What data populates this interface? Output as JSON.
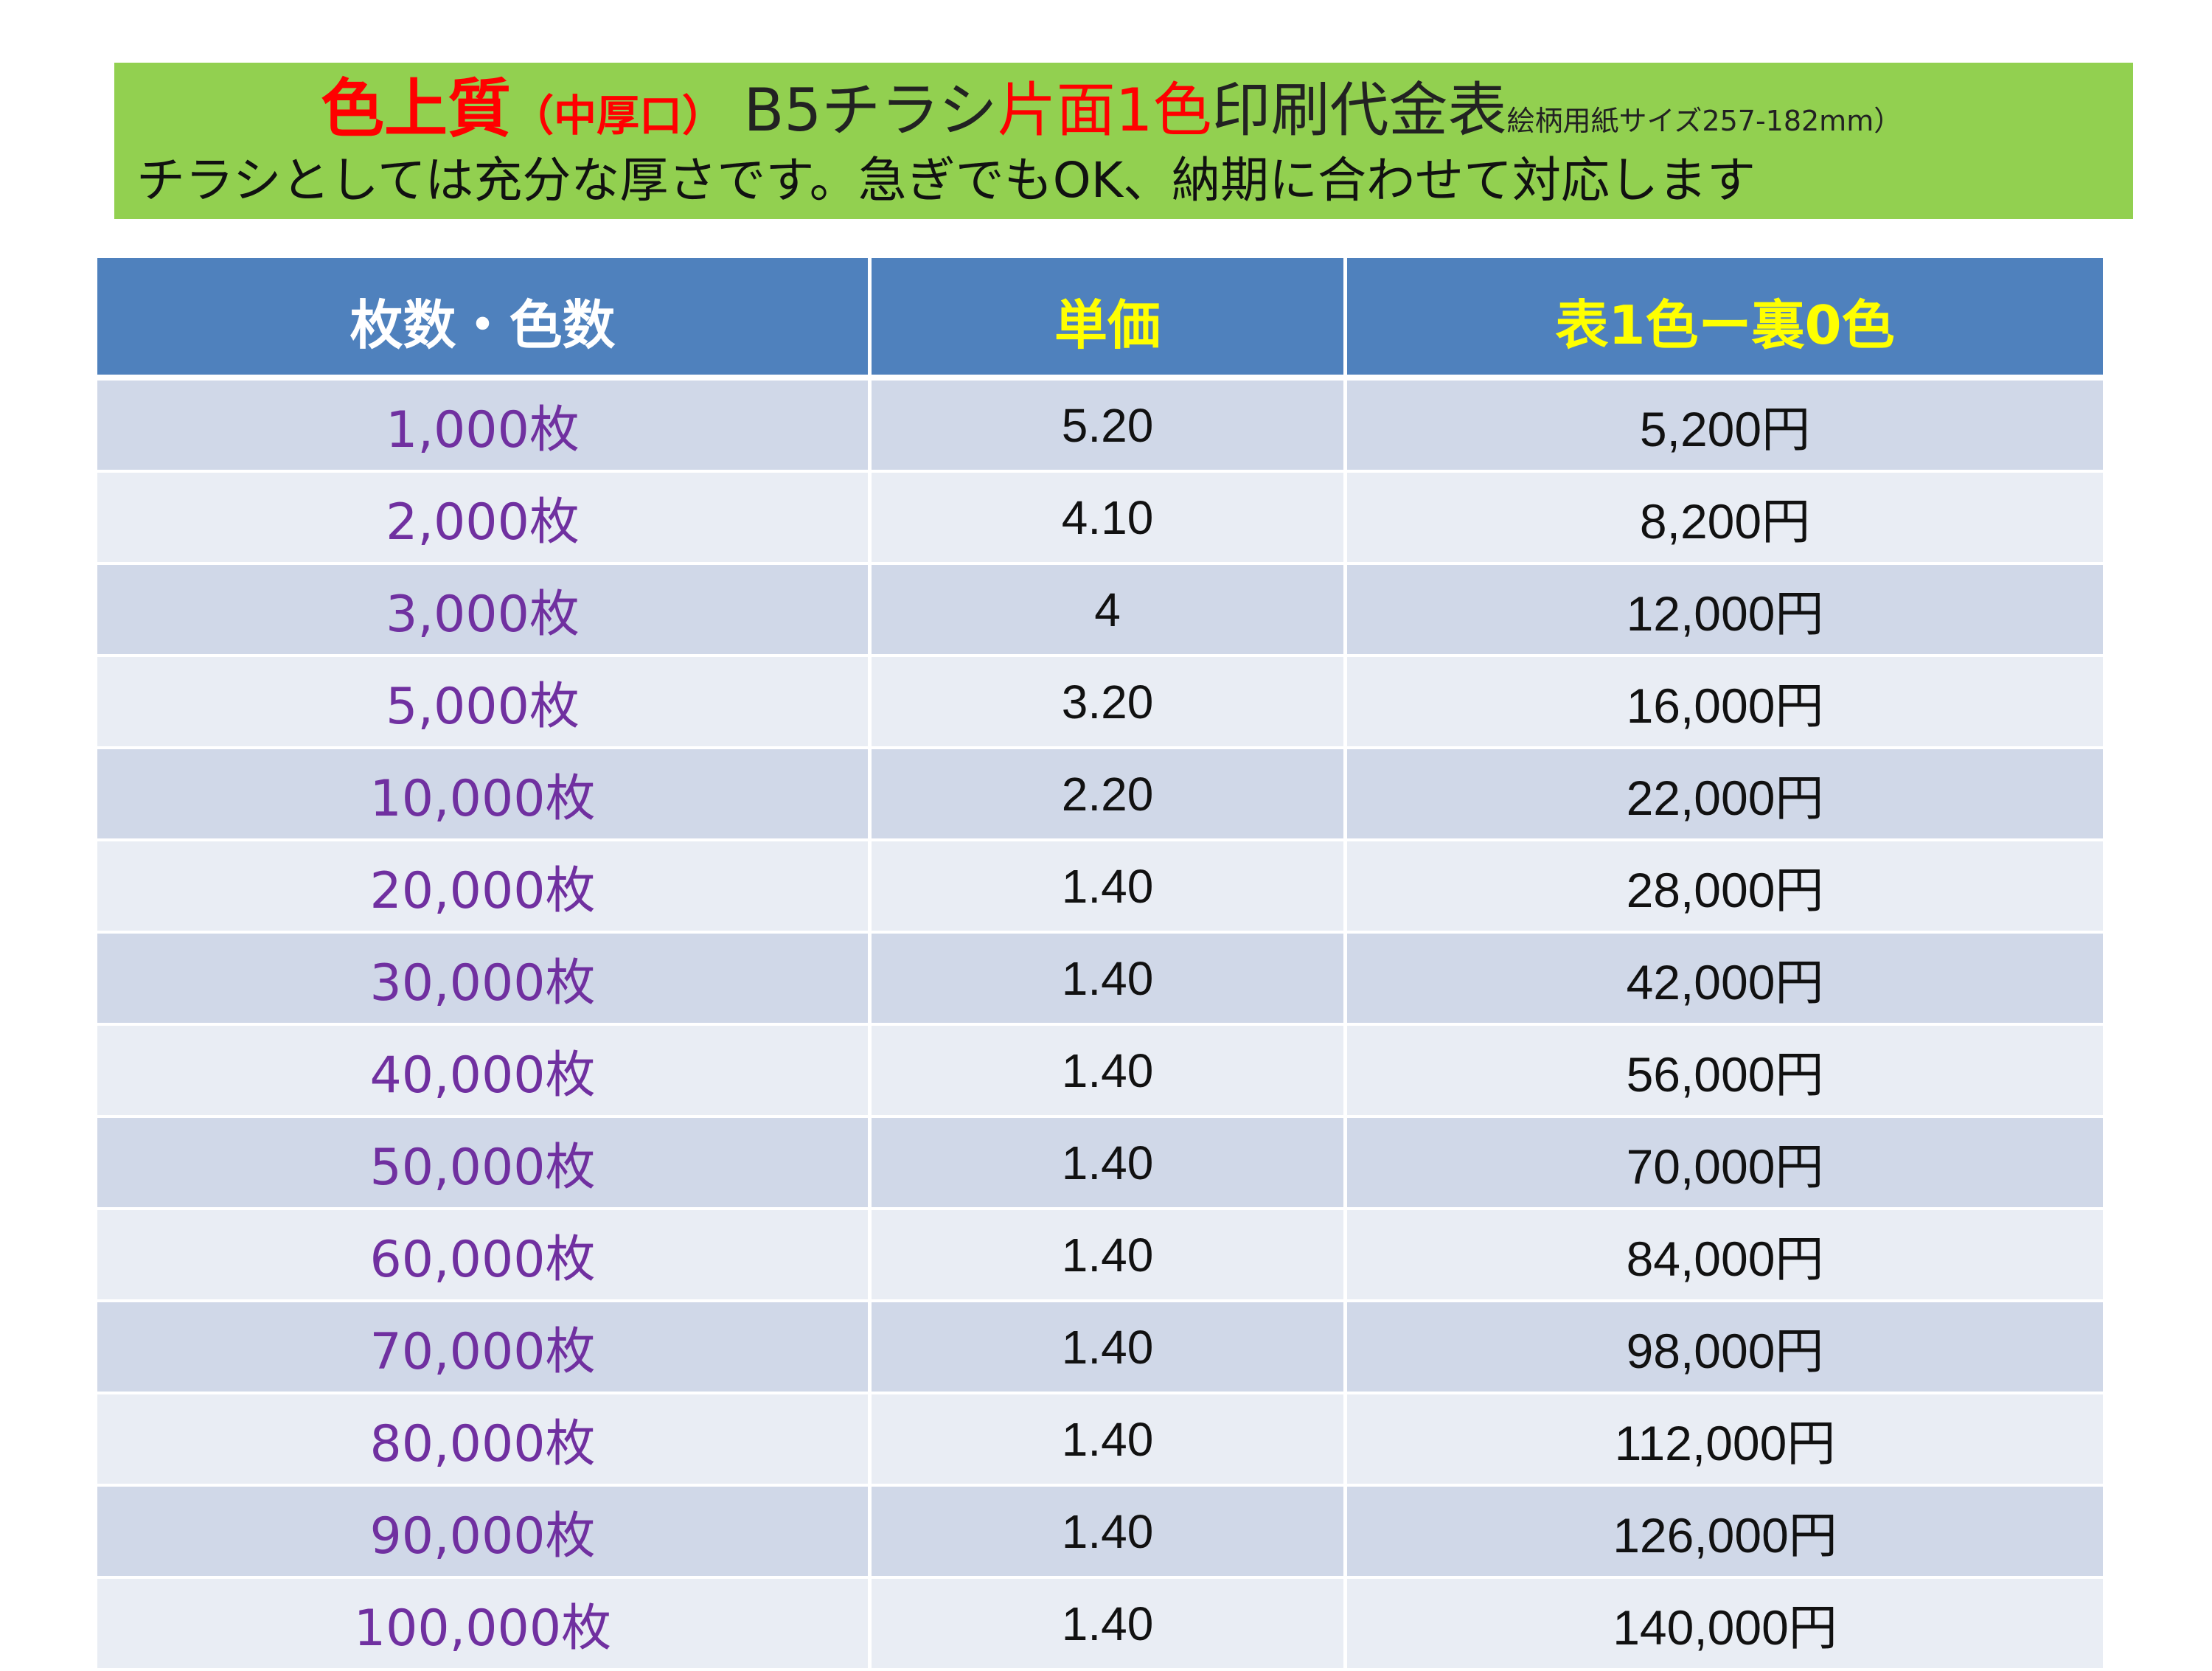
{
  "banner": {
    "title_part1": "色上質",
    "title_part2": "（中厚口）",
    "title_part3": " B5チラシ",
    "title_part4": "片面1色",
    "title_part5": "印刷代金表",
    "title_part6": "絵柄用紙サイズ257-182mm）",
    "subtitle": "チラシとしては充分な厚さです。急ぎでもOK、納期に合わせて対応します"
  },
  "table": {
    "headers": [
      "枚数・色数",
      "単価",
      "表1色ー裏0色"
    ],
    "rows": [
      [
        "1,000枚",
        "5.20",
        "5,200円"
      ],
      [
        "2,000枚",
        "4.10",
        "8,200円"
      ],
      [
        "3,000枚",
        "4",
        "12,000円"
      ],
      [
        "5,000枚",
        "3.20",
        "16,000円"
      ],
      [
        "10,000枚",
        "2.20",
        "22,000円"
      ],
      [
        "20,000枚",
        "1.40",
        "28,000円"
      ],
      [
        "30,000枚",
        "1.40",
        "42,000円"
      ],
      [
        "40,000枚",
        "1.40",
        "56,000円"
      ],
      [
        "50,000枚",
        "1.40",
        "70,000円"
      ],
      [
        "60,000枚",
        "1.40",
        "84,000円"
      ],
      [
        "70,000枚",
        "1.40",
        "98,000円"
      ],
      [
        "80,000枚",
        "1.40",
        "112,000円"
      ],
      [
        "90,000枚",
        "1.40",
        "126,000円"
      ],
      [
        "100,000枚",
        "1.40",
        "140,000円"
      ]
    ]
  },
  "colors": {
    "banner_bg": "#92d050",
    "header_bg": "#4f81bd",
    "row_dark": "#d0d8e8",
    "row_light": "#e9edf4",
    "title_red": "#ff0000",
    "qty_purple": "#7030a0",
    "header_yellow": "#ffff00"
  }
}
